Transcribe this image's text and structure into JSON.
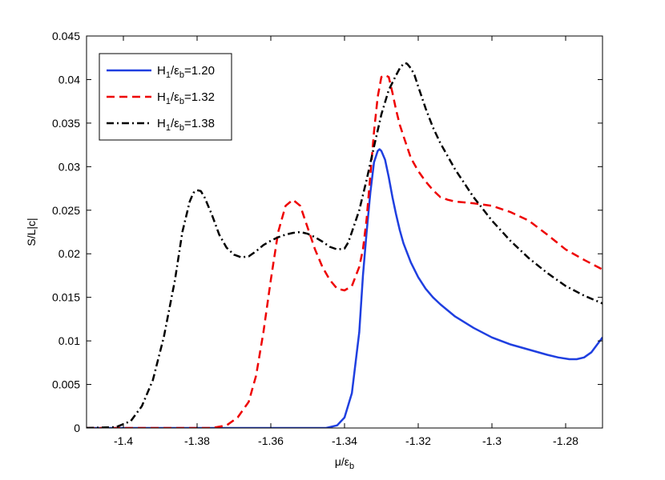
{
  "chart_data": {
    "type": "line",
    "xlabel": "μ/ε",
    "xlabel_sub": "b",
    "ylabel": "S/L|c|",
    "xlim": [
      -1.41,
      -1.27
    ],
    "ylim": [
      0,
      0.045
    ],
    "xticks": [
      -1.4,
      -1.38,
      -1.36,
      -1.34,
      -1.32,
      -1.3,
      -1.28
    ],
    "xtick_labels": [
      "-1.4",
      "-1.38",
      "-1.36",
      "-1.34",
      "-1.32",
      "-1.3",
      "-1.28"
    ],
    "yticks": [
      0,
      0.005,
      0.01,
      0.015,
      0.02,
      0.025,
      0.03,
      0.035,
      0.04,
      0.045
    ],
    "ytick_labels": [
      "0",
      "0.005",
      "0.01",
      "0.015",
      "0.02",
      "0.025",
      "0.03",
      "0.035",
      "0.04",
      "0.045"
    ],
    "grid": false,
    "legend_position": "top-left",
    "series": [
      {
        "name": "H1/εb=1.20",
        "legend": {
          "a": "H",
          "a_sub": "1",
          "b": "/ε",
          "b_sub": "b",
          "c": "=1.20"
        },
        "color": "#1f3fe0",
        "style": "solid",
        "x": [
          -1.41,
          -1.345,
          -1.342,
          -1.34,
          -1.338,
          -1.336,
          -1.335,
          -1.334,
          -1.333,
          -1.332,
          -1.331,
          -1.3305,
          -1.33,
          -1.329,
          -1.328,
          -1.327,
          -1.326,
          -1.325,
          -1.324,
          -1.322,
          -1.32,
          -1.318,
          -1.316,
          -1.314,
          -1.312,
          -1.31,
          -1.305,
          -1.3,
          -1.295,
          -1.29,
          -1.285,
          -1.282,
          -1.279,
          -1.277,
          -1.275,
          -1.273,
          -1.27
        ],
        "y": [
          0,
          0,
          0.0003,
          0.0012,
          0.004,
          0.011,
          0.0175,
          0.0225,
          0.027,
          0.0305,
          0.0318,
          0.032,
          0.0318,
          0.0308,
          0.0288,
          0.0265,
          0.0245,
          0.0227,
          0.0212,
          0.019,
          0.0173,
          0.016,
          0.015,
          0.0142,
          0.0135,
          0.0128,
          0.0115,
          0.0104,
          0.0096,
          0.009,
          0.0084,
          0.0081,
          0.0079,
          0.0079,
          0.0081,
          0.0087,
          0.0104
        ]
      },
      {
        "name": "H1/εb=1.32",
        "legend": {
          "a": "H",
          "a_sub": "1",
          "b": "/ε",
          "b_sub": "b",
          "c": "=1.32"
        },
        "color": "#ee0000",
        "style": "dashed",
        "x": [
          -1.41,
          -1.376,
          -1.372,
          -1.369,
          -1.366,
          -1.364,
          -1.362,
          -1.36,
          -1.358,
          -1.356,
          -1.354,
          -1.352,
          -1.35,
          -1.348,
          -1.346,
          -1.344,
          -1.342,
          -1.34,
          -1.338,
          -1.336,
          -1.335,
          -1.334,
          -1.333,
          -1.332,
          -1.331,
          -1.33,
          -1.329,
          -1.328,
          -1.327,
          -1.326,
          -1.325,
          -1.324,
          -1.322,
          -1.32,
          -1.318,
          -1.316,
          -1.314,
          -1.312,
          -1.31,
          -1.305,
          -1.3,
          -1.295,
          -1.29,
          -1.285,
          -1.28,
          -1.275,
          -1.27
        ],
        "y": [
          0,
          0,
          0.0003,
          0.0012,
          0.003,
          0.006,
          0.011,
          0.017,
          0.0225,
          0.0255,
          0.0262,
          0.0255,
          0.023,
          0.0205,
          0.0185,
          0.017,
          0.016,
          0.0158,
          0.0163,
          0.0185,
          0.0205,
          0.024,
          0.029,
          0.034,
          0.038,
          0.0403,
          0.0405,
          0.0403,
          0.0385,
          0.0365,
          0.0348,
          0.0335,
          0.031,
          0.0295,
          0.0283,
          0.0273,
          0.0265,
          0.0262,
          0.026,
          0.0258,
          0.0255,
          0.0248,
          0.0238,
          0.0222,
          0.0205,
          0.0193,
          0.0182
        ]
      },
      {
        "name": "H1/εb=1.38",
        "legend": {
          "a": "H",
          "a_sub": "1",
          "b": "/ε",
          "b_sub": "b",
          "c": "=1.38"
        },
        "color": "#000000",
        "style": "dashdot",
        "x": [
          -1.41,
          -1.402,
          -1.398,
          -1.395,
          -1.392,
          -1.389,
          -1.386,
          -1.384,
          -1.382,
          -1.381,
          -1.38,
          -1.379,
          -1.378,
          -1.376,
          -1.374,
          -1.372,
          -1.37,
          -1.368,
          -1.366,
          -1.364,
          -1.362,
          -1.36,
          -1.358,
          -1.356,
          -1.354,
          -1.352,
          -1.35,
          -1.348,
          -1.346,
          -1.344,
          -1.342,
          -1.34,
          -1.339,
          -1.338,
          -1.336,
          -1.334,
          -1.332,
          -1.33,
          -1.328,
          -1.326,
          -1.325,
          -1.324,
          -1.3235,
          -1.323,
          -1.322,
          -1.321,
          -1.32,
          -1.318,
          -1.316,
          -1.314,
          -1.312,
          -1.31,
          -1.305,
          -1.3,
          -1.295,
          -1.29,
          -1.285,
          -1.28,
          -1.275,
          -1.27
        ],
        "y": [
          0,
          0.0001,
          0.0008,
          0.0025,
          0.0055,
          0.0105,
          0.017,
          0.0225,
          0.026,
          0.027,
          0.0273,
          0.0272,
          0.0265,
          0.0245,
          0.0222,
          0.0207,
          0.0199,
          0.0196,
          0.0197,
          0.0203,
          0.021,
          0.0215,
          0.0219,
          0.0222,
          0.0224,
          0.0225,
          0.0223,
          0.0219,
          0.0214,
          0.0208,
          0.0205,
          0.0206,
          0.0213,
          0.0225,
          0.025,
          0.0285,
          0.0323,
          0.036,
          0.0388,
          0.0405,
          0.0413,
          0.0418,
          0.0419,
          0.0418,
          0.0413,
          0.0405,
          0.0392,
          0.0367,
          0.0345,
          0.0327,
          0.0312,
          0.0297,
          0.0265,
          0.0238,
          0.0215,
          0.0195,
          0.0178,
          0.0163,
          0.0152,
          0.0143
        ]
      }
    ]
  }
}
